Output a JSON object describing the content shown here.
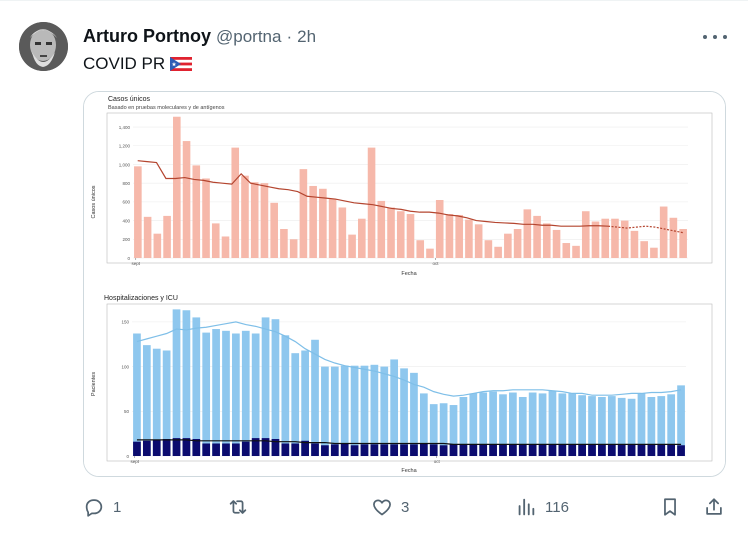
{
  "tweet": {
    "author_name": "Arturo Portnoy",
    "handle": "@portna",
    "separator": "·",
    "time": "2h",
    "text": "COVID PR"
  },
  "actions": {
    "reply_count": "1",
    "retweet_count": "",
    "like_count": "3",
    "views_count": "116"
  },
  "icons": [
    "more-icon",
    "flag-pr-icon",
    "reply-icon",
    "retweet-icon",
    "like-icon",
    "views-icon",
    "bookmark-icon",
    "share-icon"
  ],
  "colors": {
    "case_bar": "#f6b8aa",
    "case_line": "#b4452f",
    "hosp_bar": "#8ec7ee",
    "hosp_line": "#7fbfe8",
    "icu_bar": "#0b0b6e",
    "icu_line": "#111111"
  },
  "chart_data": [
    {
      "type": "bar",
      "title": "Casos únicos",
      "subtitle": "Basado en pruebas moleculares y de antígenos",
      "xlabel": "Fecha",
      "ylabel": "Casos únicos",
      "ylim": [
        0,
        1550
      ],
      "yticks": [
        "0",
        "200",
        "400",
        "600",
        "800",
        "1,000",
        "1,200",
        "1,400"
      ],
      "xticks": [
        "sept",
        "oct"
      ],
      "series": [
        {
          "values": [
            980,
            440,
            260,
            450,
            1510,
            1250,
            990,
            850,
            370,
            230,
            1180,
            880,
            810,
            800,
            590,
            310,
            200,
            950,
            770,
            740,
            630,
            540,
            250,
            420,
            1180,
            610,
            540,
            500,
            470,
            190,
            100,
            620,
            470,
            460,
            410,
            360,
            190,
            120,
            260,
            310,
            520,
            450,
            370,
            300,
            160,
            130,
            500,
            390,
            420,
            420,
            400,
            290,
            180,
            110,
            550,
            430,
            310
          ]
        },
        {
          "type": "line",
          "values": [
            1040,
            1030,
            1020,
            850,
            850,
            860,
            840,
            830,
            810,
            800,
            790,
            900,
            800,
            780,
            760,
            740,
            730,
            710,
            660,
            650,
            640,
            630,
            610,
            590,
            580,
            570,
            550,
            530,
            520,
            500,
            490,
            490,
            480,
            460,
            450,
            430,
            400,
            390,
            380,
            375,
            370,
            360,
            360,
            350,
            350,
            340,
            340,
            340,
            345,
            345,
            340,
            330,
            320,
            330,
            340,
            330,
            310,
            290,
            270
          ],
          "dashed_from": 51
        }
      ]
    },
    {
      "type": "bar",
      "title": "Hospitalizaciones y ICU",
      "xlabel": "Fecha",
      "ylabel": "Pacientes",
      "ylim": [
        0,
        170
      ],
      "yticks": [
        "0",
        "50",
        "100",
        "150"
      ],
      "xticks": [
        "sept",
        "oct"
      ],
      "series": [
        {
          "values": [
            137,
            124,
            120,
            118,
            164,
            163,
            155,
            138,
            142,
            140,
            137,
            140,
            137,
            155,
            153,
            135,
            115,
            118,
            130,
            100,
            100,
            101,
            101,
            101,
            102,
            100,
            108,
            98,
            93,
            70,
            58,
            59,
            57,
            66,
            70,
            71,
            72,
            69,
            71,
            66,
            71,
            70,
            73,
            70,
            70,
            68,
            67,
            66,
            67,
            65,
            64,
            70,
            66,
            67,
            69,
            79
          ]
        },
        {
          "values": [
            16,
            17,
            18,
            19,
            20,
            20,
            19,
            14,
            14,
            14,
            14,
            16,
            20,
            20,
            19,
            14,
            14,
            17,
            14,
            12,
            13,
            14,
            12,
            13,
            13,
            13,
            13,
            13,
            13,
            14,
            13,
            12,
            13,
            13,
            13,
            13,
            13,
            13,
            13,
            13,
            13,
            13,
            13,
            13,
            13,
            13,
            13,
            13,
            13,
            13,
            13,
            13,
            13,
            13,
            13,
            12
          ]
        },
        {
          "type": "line",
          "values": [
            128,
            131,
            134,
            137,
            142,
            141,
            143,
            144,
            146,
            148,
            150,
            147,
            145,
            142,
            139,
            134,
            128,
            120,
            114,
            108,
            104,
            101,
            99,
            97,
            95,
            92,
            89,
            85,
            80,
            77,
            72,
            69,
            67,
            68,
            70,
            72,
            73,
            73,
            74,
            74,
            74,
            74,
            73,
            72,
            70,
            70,
            68,
            68,
            68,
            69,
            70,
            70,
            71,
            71,
            72,
            74
          ]
        },
        {
          "type": "line",
          "values": [
            18,
            18,
            18,
            18,
            18,
            18,
            17,
            17,
            17,
            17,
            17,
            17,
            17,
            17,
            16,
            16,
            16,
            15,
            15,
            15,
            14,
            14,
            14,
            14,
            14,
            14,
            14,
            14,
            14,
            14,
            14,
            14,
            13,
            13,
            13,
            13,
            13,
            13,
            13,
            13,
            13,
            13,
            13,
            13,
            13,
            13,
            13,
            13,
            13,
            13,
            13,
            13,
            13,
            13,
            13,
            13
          ]
        }
      ]
    }
  ]
}
